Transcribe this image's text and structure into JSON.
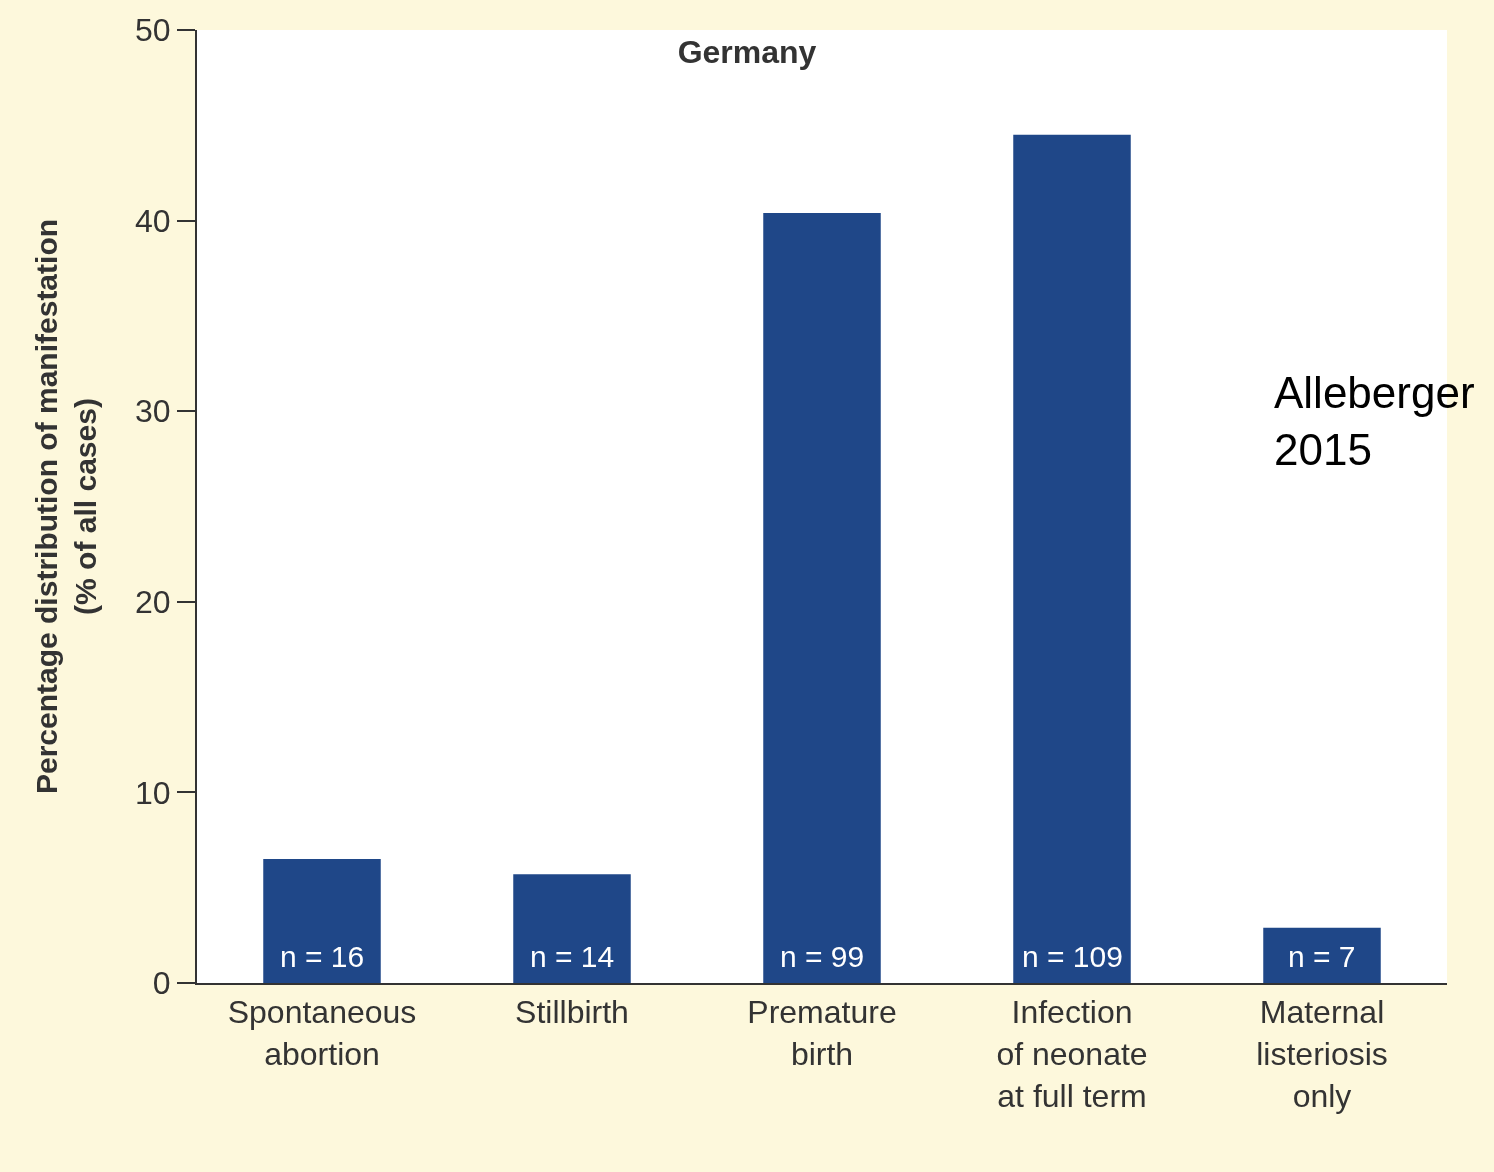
{
  "chart_data": {
    "type": "bar",
    "title": "Germany",
    "ylabel": "Percentage distribution of manifestation\n(% of all cases)",
    "categories": [
      "Spontaneous\nabortion",
      "Stillbirth",
      "Premature\nbirth",
      "Infection\nof neonate\nat full term",
      "Maternal\nlisteriosis\nonly"
    ],
    "values": [
      6.5,
      5.7,
      40.4,
      44.5,
      2.9
    ],
    "color": "#1f4788",
    "ylim": [
      0,
      50
    ],
    "yticks": [
      0,
      10,
      20,
      30,
      40,
      50
    ],
    "annotations": [
      {
        "text": "n = 16",
        "x": "Spontaneous\nabortion",
        "y": 0
      },
      {
        "text": "n = 14",
        "x": "Stillbirth",
        "y": 0
      },
      {
        "text": "n = 99",
        "x": "Premature\nbirth",
        "y": 0
      },
      {
        "text": "n = 109",
        "x": "Infection\nof neonate\nat full term",
        "y": 0
      },
      {
        "text": "n = 7",
        "x": "Maternal\nlisteriosis\nonly",
        "y": 0
      },
      "Alleberger\n2015"
    ]
  }
}
